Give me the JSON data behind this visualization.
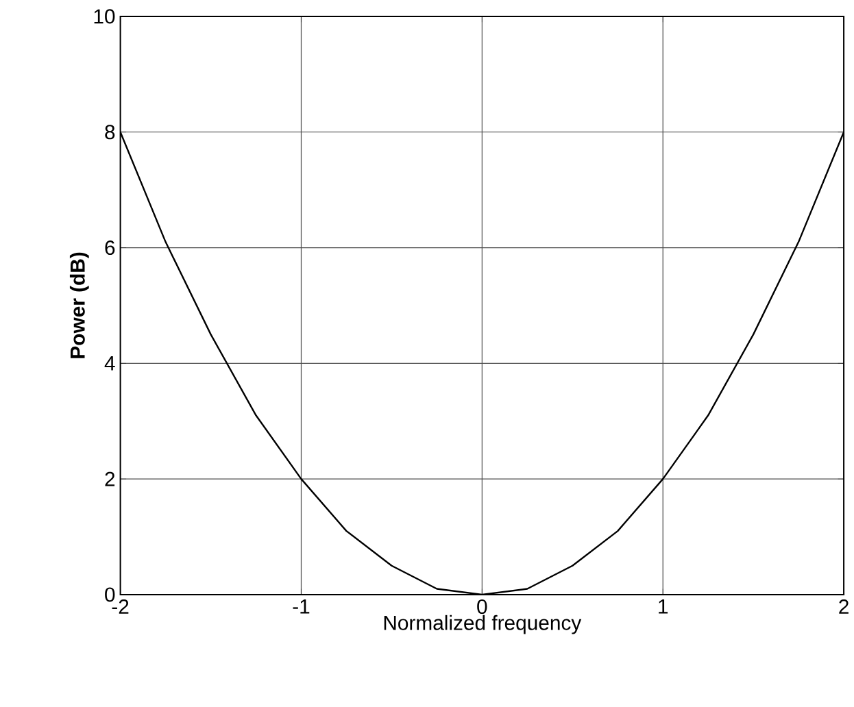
{
  "chart_data": {
    "type": "line",
    "xlabel": "Normalized frequency",
    "ylabel": "Power (dB)",
    "x": [
      -2,
      -1.75,
      -1.5,
      -1.25,
      -1,
      -0.75,
      -0.5,
      -0.25,
      0,
      0.25,
      0.5,
      0.75,
      1,
      1.25,
      1.5,
      1.75,
      2
    ],
    "series": [
      {
        "color": "#000000",
        "values": [
          8,
          6.1,
          4.5,
          3.1,
          2,
          1.1,
          0.5,
          0.1,
          0,
          0.1,
          0.5,
          1.1,
          2,
          3.1,
          4.5,
          6.1,
          8
        ]
      }
    ],
    "xlim": [
      -2,
      2
    ],
    "ylim": [
      0,
      10
    ],
    "xticks": [
      -2,
      -1,
      0,
      1,
      2
    ],
    "yticks": [
      0,
      2,
      4,
      6,
      8,
      10
    ],
    "grid": true,
    "marker": "none",
    "line_style": "solid"
  }
}
